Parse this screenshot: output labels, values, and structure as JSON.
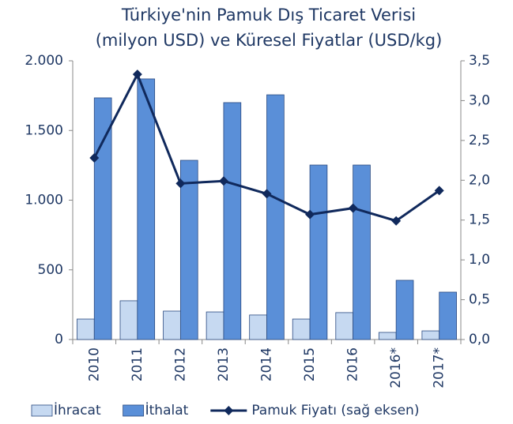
{
  "chart_data": {
    "type": "bar",
    "title": [
      "Türkiye'nin Pamuk Dış Ticaret Verisi",
      "(milyon USD) ve Küresel Fiyatlar (USD/kg)"
    ],
    "categories": [
      "2010",
      "2011",
      "2012",
      "2013",
      "2014",
      "2015",
      "2016",
      "2016*",
      "2017*"
    ],
    "series": [
      {
        "name": "İhracat",
        "color": "#c6d9f1",
        "values": [
          147,
          278,
          204,
          198,
          176,
          147,
          193,
          51,
          62
        ]
      },
      {
        "name": "İthalat",
        "color": "#5a8fd8",
        "values": [
          1734,
          1870,
          1286,
          1700,
          1756,
          1252,
          1252,
          425,
          340
        ]
      },
      {
        "name": "Pamuk Fiyatı (sağ eksen)",
        "color": "#10295c",
        "type": "line",
        "axis": "y2",
        "values": [
          2.28,
          3.33,
          1.96,
          1.99,
          1.83,
          1.57,
          1.65,
          1.49,
          1.87
        ]
      }
    ],
    "ylim": [
      0,
      2000
    ],
    "yticks": [
      0,
      500,
      {
        "value": 1000,
        "label": "1.000"
      },
      {
        "value": 1500,
        "label": "1.500"
      },
      {
        "value": 2000,
        "label": "2.000"
      }
    ],
    "y2lim": [
      0,
      3.5
    ],
    "y2ticks": [
      {
        "value": 0,
        "label": "0,0"
      },
      {
        "value": 0.5,
        "label": "0,5"
      },
      {
        "value": 1,
        "label": "1,0"
      },
      {
        "value": 1.5,
        "label": "1,5"
      },
      {
        "value": 2,
        "label": "2,0"
      },
      {
        "value": 2.5,
        "label": "2,5"
      },
      {
        "value": 3,
        "label": "3,0"
      },
      {
        "value": 3.5,
        "label": "3,5"
      }
    ],
    "grid": false,
    "legend": "bottom"
  }
}
